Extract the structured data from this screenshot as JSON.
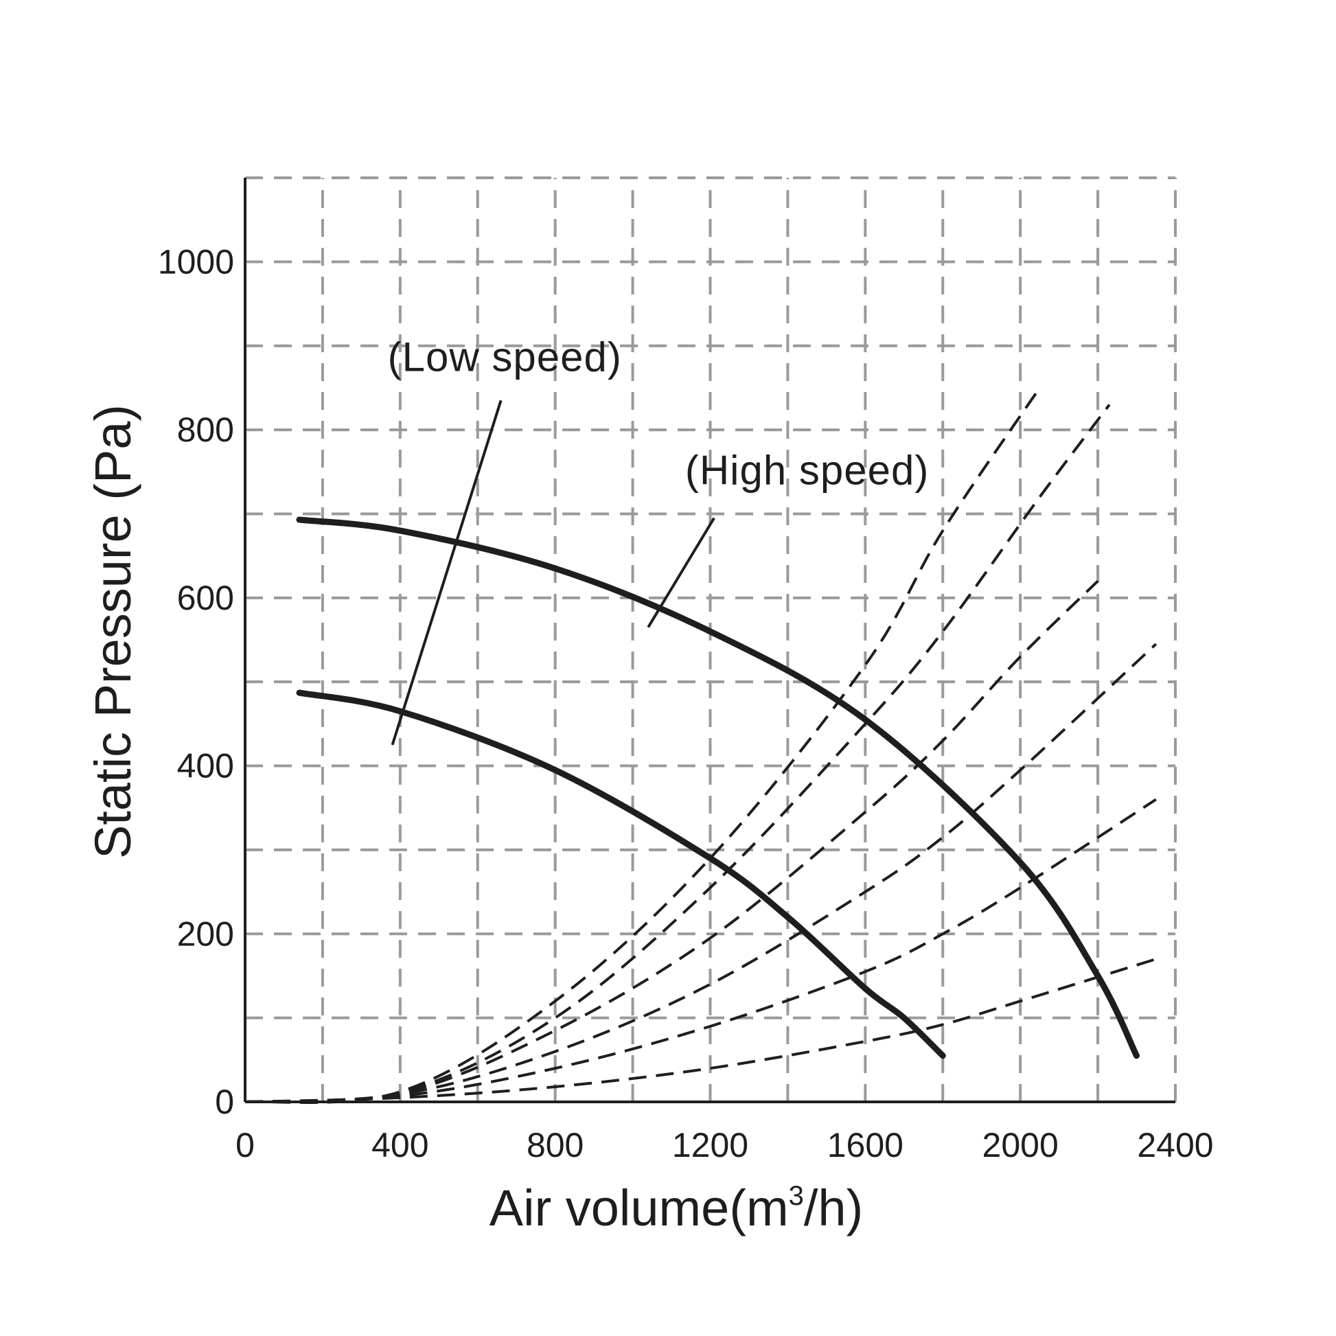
{
  "chart_data": {
    "type": "line",
    "xlabel": "Air volume(m³/h)",
    "xlabel_parts": {
      "pre": "Air  volume(m",
      "sup": "3",
      "post": "/h)"
    },
    "ylabel": "Static Pressure (Pa)",
    "xlim": [
      0,
      2400
    ],
    "ylim": [
      0,
      1100
    ],
    "x_ticks": [
      "0",
      "400",
      "800",
      "1200",
      "1600",
      "2000",
      "2400"
    ],
    "y_ticks": [
      "0",
      "200",
      "400",
      "600",
      "800",
      "1000"
    ],
    "grid": true,
    "grid_x_step": 200,
    "grid_y_step": 100,
    "annotations": [
      {
        "text": "(Low speed)",
        "x": 670,
        "y": 870,
        "pointer_from": [
          660,
          835
        ],
        "pointer_to": [
          380,
          425
        ]
      },
      {
        "text": "(High speed)",
        "x": 1450,
        "y": 735,
        "pointer_from": [
          1210,
          695
        ],
        "pointer_to": [
          1040,
          565
        ]
      }
    ],
    "series": [
      {
        "style": "solid",
        "x": [
          140,
          400,
          800,
          1200,
          1400,
          1600,
          1700,
          1800
        ],
        "y": [
          487,
          465,
          395,
          290,
          220,
          135,
          100,
          55
        ]
      },
      {
        "style": "solid",
        "x": [
          140,
          400,
          800,
          1200,
          1600,
          2000,
          2200,
          2300
        ],
        "y": [
          693,
          680,
          635,
          560,
          455,
          285,
          150,
          55
        ]
      },
      {
        "style": "dashed",
        "x": [
          0,
          400,
          800,
          1200,
          1600,
          1800,
          2050
        ],
        "y": [
          0,
          12,
          120,
          290,
          520,
          680,
          850
        ]
      },
      {
        "style": "dashed",
        "x": [
          0,
          400,
          800,
          1200,
          1600,
          1800,
          2050,
          2230
        ],
        "y": [
          0,
          11,
          100,
          255,
          450,
          560,
          720,
          830
        ]
      },
      {
        "style": "dashed",
        "x": [
          0,
          400,
          800,
          1200,
          1600,
          1800,
          2000,
          2200
        ],
        "y": [
          0,
          10,
          85,
          195,
          345,
          430,
          530,
          620
        ]
      },
      {
        "style": "dashed",
        "x": [
          0,
          400,
          800,
          1200,
          1600,
          1800,
          2000,
          2350
        ],
        "y": [
          0,
          9,
          60,
          140,
          250,
          315,
          395,
          545
        ]
      },
      {
        "style": "dashed",
        "x": [
          0,
          400,
          800,
          1200,
          1600,
          1800,
          2000,
          2350
        ],
        "y": [
          0,
          7,
          40,
          90,
          155,
          200,
          255,
          360
        ]
      },
      {
        "style": "dashed",
        "x": [
          0,
          400,
          800,
          1200,
          1600,
          1800,
          2000,
          2350
        ],
        "y": [
          0,
          5,
          18,
          40,
          72,
          92,
          120,
          170
        ]
      }
    ]
  }
}
